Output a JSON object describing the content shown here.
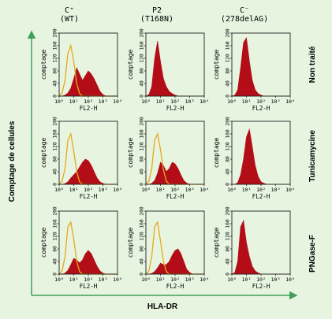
{
  "columns": [
    {
      "name": "C⁺",
      "sub": "(WT)"
    },
    {
      "name": "P2",
      "sub": "(T168N)"
    },
    {
      "name": "C⁻",
      "sub": "(278delAG)"
    }
  ],
  "rows": [
    "Non traité",
    "Tunicamycine",
    "PNGase-F"
  ],
  "axes": {
    "y_outer": "Comptage de cellules",
    "x_outer": "HLA-DR",
    "panel_ylabel": "comptage",
    "panel_xlabel": "FL2-H",
    "y_ticks": [
      "0",
      "40",
      "80",
      "120",
      "160",
      "200"
    ],
    "x_ticks": [
      "10⁰",
      "10¹",
      "10²",
      "10³",
      "10⁴"
    ]
  },
  "colors": {
    "background": "#e6f4e0",
    "filled": "#b30e17",
    "control": "#e8a820",
    "axis_arrow": "#3e9e5a"
  },
  "chart_data": {
    "type": "area",
    "xscale": "log",
    "xlim": [
      1,
      10000
    ],
    "ylim": [
      0,
      200
    ],
    "note_categories": "per panel: control = isotype outline (only in C+ and P2 panels), red = HLA-DR staining",
    "x": [
      1,
      1.6,
      2.5,
      4,
      6.3,
      10,
      16,
      25,
      40,
      63,
      100,
      160,
      250,
      400,
      630,
      1000,
      1600,
      2500,
      4000,
      6300,
      10000
    ],
    "panels": [
      {
        "row": "Non traité",
        "column": "C⁺ (WT)",
        "control": [
          0,
          10,
          50,
          135,
          160,
          110,
          40,
          8,
          0,
          0,
          0,
          0,
          0,
          0,
          0,
          0,
          0,
          0,
          0,
          0,
          0
        ],
        "stained": [
          0,
          0,
          3,
          10,
          25,
          55,
          90,
          70,
          50,
          65,
          80,
          70,
          55,
          35,
          15,
          5,
          0,
          0,
          0,
          0,
          0
        ]
      },
      {
        "row": "Non traité",
        "column": "P2 (T168N)",
        "control": null,
        "stained": [
          0,
          5,
          30,
          120,
          175,
          110,
          55,
          30,
          15,
          8,
          3,
          0,
          0,
          0,
          0,
          0,
          0,
          0,
          0,
          0,
          0
        ]
      },
      {
        "row": "Non traité",
        "column": "C⁻ (278delAG)",
        "control": null,
        "stained": [
          0,
          3,
          20,
          90,
          170,
          185,
          110,
          50,
          20,
          8,
          3,
          0,
          0,
          0,
          0,
          0,
          0,
          0,
          0,
          0,
          0
        ]
      },
      {
        "row": "Tunicamycine",
        "column": "C⁺ (WT)",
        "control": [
          0,
          10,
          50,
          140,
          160,
          105,
          40,
          8,
          0,
          0,
          0,
          0,
          0,
          0,
          0,
          0,
          0,
          0,
          0,
          0,
          0
        ],
        "stained": [
          0,
          0,
          2,
          8,
          20,
          30,
          40,
          55,
          70,
          80,
          75,
          60,
          40,
          20,
          8,
          3,
          0,
          0,
          0,
          0,
          0
        ]
      },
      {
        "row": "Tunicamycine",
        "column": "P2 (T168N)",
        "control": [
          0,
          10,
          50,
          140,
          160,
          110,
          45,
          10,
          0,
          0,
          0,
          0,
          0,
          0,
          0,
          0,
          0,
          0,
          0,
          0,
          0
        ],
        "stained": [
          0,
          0,
          3,
          12,
          35,
          70,
          60,
          40,
          50,
          70,
          65,
          50,
          30,
          12,
          4,
          0,
          0,
          0,
          0,
          0,
          0
        ]
      },
      {
        "row": "Tunicamycine",
        "column": "C⁻ (278delAG)",
        "control": null,
        "stained": [
          0,
          0,
          5,
          30,
          80,
          150,
          175,
          120,
          60,
          25,
          8,
          3,
          0,
          0,
          0,
          0,
          0,
          0,
          0,
          0,
          0
        ]
      },
      {
        "row": "PNGase-F",
        "column": "C⁺ (WT)",
        "control": [
          0,
          10,
          55,
          150,
          165,
          110,
          40,
          8,
          0,
          0,
          0,
          0,
          0,
          0,
          0,
          0,
          0,
          0,
          0,
          0,
          0
        ],
        "stained": [
          0,
          0,
          3,
          12,
          30,
          50,
          45,
          35,
          45,
          65,
          75,
          65,
          45,
          25,
          10,
          3,
          0,
          0,
          0,
          0,
          0
        ]
      },
      {
        "row": "PNGase-F",
        "column": "P2 (T168N)",
        "control": [
          0,
          10,
          55,
          150,
          165,
          105,
          40,
          8,
          0,
          0,
          0,
          0,
          0,
          0,
          0,
          0,
          0,
          0,
          0,
          0,
          0
        ],
        "stained": [
          0,
          0,
          2,
          8,
          20,
          35,
          30,
          30,
          40,
          60,
          75,
          80,
          65,
          40,
          15,
          5,
          0,
          0,
          0,
          0,
          0
        ]
      },
      {
        "row": "PNGase-F",
        "column": "C⁻ (278delAG)",
        "control": null,
        "stained": [
          0,
          5,
          40,
          150,
          170,
          100,
          55,
          25,
          10,
          4,
          0,
          0,
          0,
          0,
          0,
          0,
          0,
          0,
          0,
          0,
          0
        ]
      }
    ]
  }
}
